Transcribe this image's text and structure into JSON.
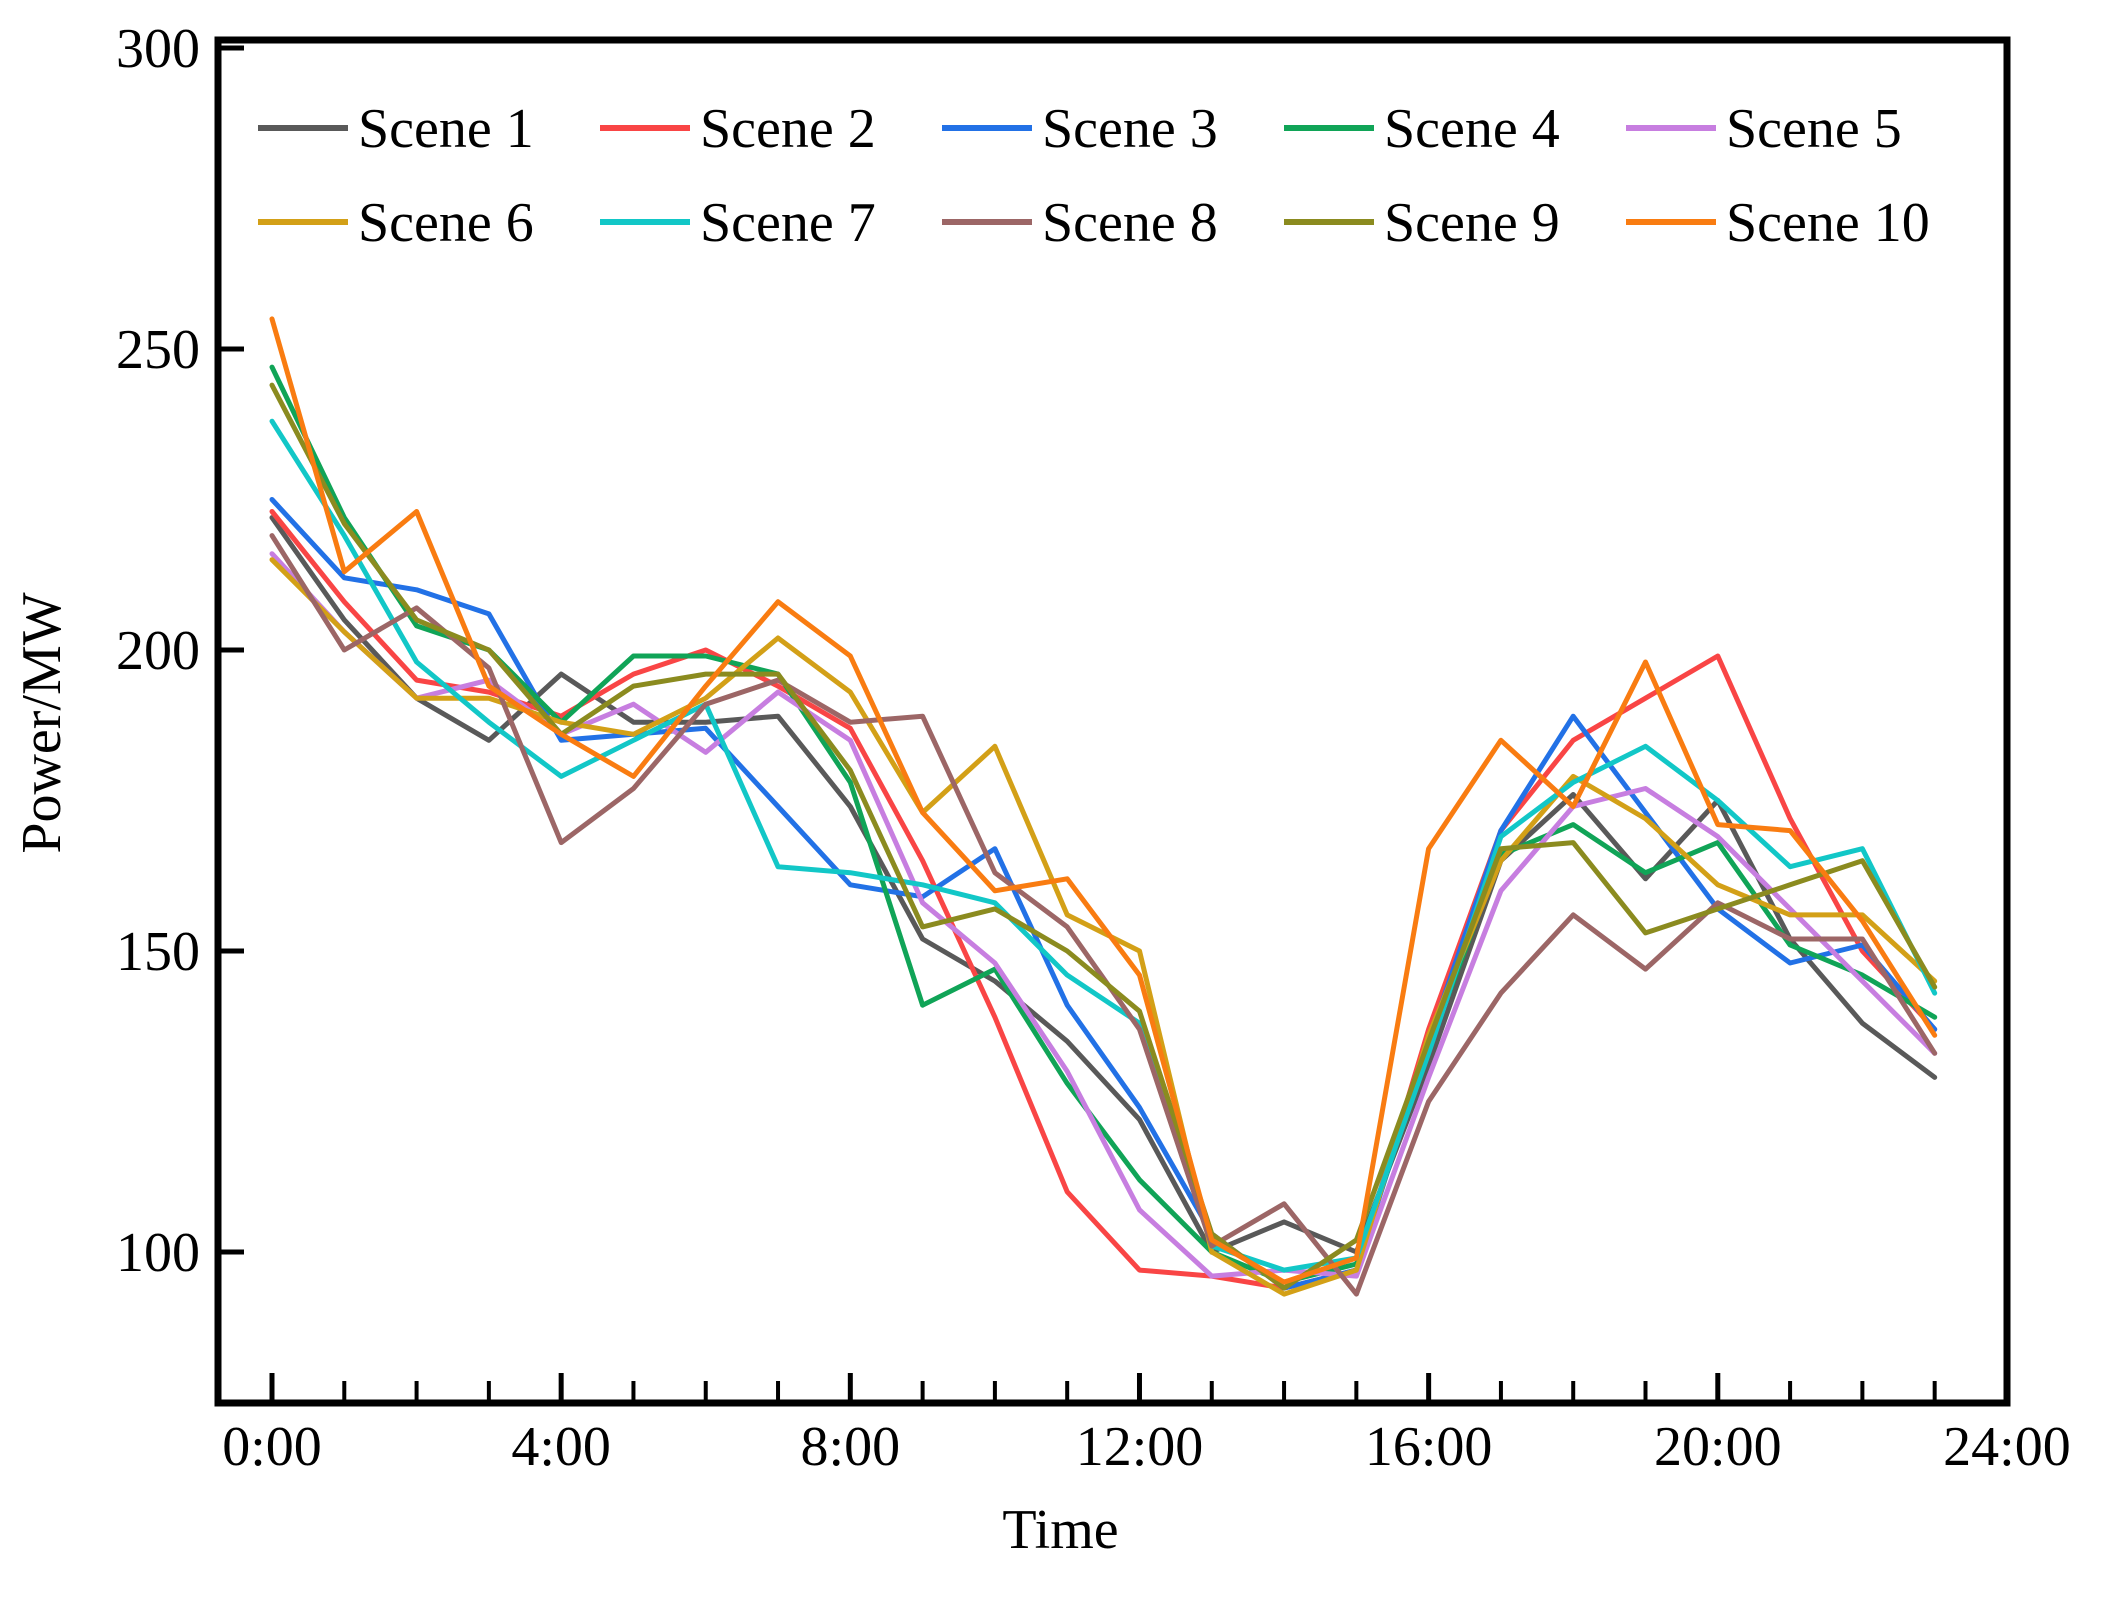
{
  "figure": {
    "xlabel": "Time",
    "ylabel": "Power/MW"
  },
  "chart_data": {
    "type": "line",
    "title": "",
    "xlabel": "Time",
    "ylabel": "Power/MW",
    "x_unit": "hour of day",
    "x": [
      0,
      1,
      2,
      3,
      4,
      5,
      6,
      7,
      8,
      9,
      10,
      11,
      12,
      13,
      14,
      15,
      16,
      17,
      18,
      19,
      20,
      21,
      22,
      23
    ],
    "x_tick_hours": [
      0,
      4,
      8,
      12,
      16,
      20,
      24
    ],
    "x_tick_labels": [
      "0:00",
      "4:00",
      "8:00",
      "12:00",
      "16:00",
      "20:00",
      "24:00"
    ],
    "x_minor_tick_every_hours": 1,
    "y_ticks": [
      100,
      150,
      200,
      250,
      300
    ],
    "ylim": [
      75,
      301
    ],
    "xlim": [
      0,
      24
    ],
    "grid": false,
    "legend_position": "top-inside-two-rows",
    "legend_rows": [
      [
        "Scene 1",
        "Scene 2",
        "Scene 3",
        "Scene 4",
        "Scene 5"
      ],
      [
        "Scene 6",
        "Scene 7",
        "Scene 8",
        "Scene 9",
        "Scene 10"
      ]
    ],
    "series": [
      {
        "name": "Scene 1",
        "color": "#595959",
        "values": [
          222,
          205,
          192,
          185,
          196,
          188,
          188,
          189,
          174,
          152,
          145,
          135,
          122,
          100,
          105,
          100,
          131,
          165,
          176,
          162,
          175,
          152,
          138,
          129
        ]
      },
      {
        "name": "Scene 2",
        "color": "#f94545",
        "values": [
          223,
          208,
          195,
          193,
          189,
          196,
          200,
          194,
          187,
          165,
          139,
          110,
          97,
          96,
          94,
          97,
          137,
          170,
          185,
          192,
          199,
          172,
          150,
          137
        ]
      },
      {
        "name": "Scene 3",
        "color": "#2271e6",
        "values": [
          225,
          212,
          210,
          206,
          185,
          186,
          187,
          174,
          161,
          159,
          167,
          141,
          124,
          103,
          94,
          97,
          135,
          170,
          189,
          173,
          157,
          148,
          151,
          137
        ]
      },
      {
        "name": "Scene 4",
        "color": "#10a457",
        "values": [
          247,
          222,
          204,
          200,
          188,
          199,
          199,
          196,
          178,
          141,
          147,
          128,
          112,
          100,
          95,
          98,
          134,
          166,
          171,
          163,
          168,
          151,
          146,
          139
        ]
      },
      {
        "name": "Scene 5",
        "color": "#c77ee0",
        "values": [
          216,
          203,
          192,
          195,
          186,
          191,
          183,
          193,
          185,
          158,
          148,
          130,
          107,
          96,
          97,
          96,
          129,
          160,
          174,
          177,
          169,
          157,
          145,
          133
        ]
      },
      {
        "name": "Scene 6",
        "color": "#d3a017",
        "values": [
          215,
          203,
          192,
          192,
          188,
          186,
          192,
          202,
          193,
          173,
          184,
          156,
          150,
          100,
          93,
          97,
          136,
          165,
          179,
          172,
          161,
          156,
          156,
          145
        ]
      },
      {
        "name": "Scene 7",
        "color": "#12c7c7",
        "values": [
          238,
          219,
          198,
          188,
          179,
          185,
          191,
          164,
          163,
          161,
          158,
          146,
          138,
          101,
          97,
          99,
          133,
          169,
          178,
          184,
          175,
          164,
          167,
          143
        ]
      },
      {
        "name": "Scene 8",
        "color": "#9c6666",
        "values": [
          219,
          200,
          207,
          197,
          168,
          177,
          191,
          195,
          188,
          189,
          163,
          154,
          137,
          101,
          108,
          93,
          125,
          143,
          156,
          147,
          158,
          152,
          152,
          133
        ]
      },
      {
        "name": "Scene 9",
        "color": "#8b8b1f",
        "values": [
          244,
          221,
          205,
          200,
          186,
          194,
          196,
          196,
          180,
          154,
          157,
          150,
          140,
          103,
          94,
          102,
          135,
          167,
          168,
          153,
          157,
          161,
          165,
          144
        ]
      },
      {
        "name": "Scene 10",
        "color": "#f97c11",
        "values": [
          255,
          213,
          223,
          194,
          186,
          179,
          194,
          208,
          199,
          173,
          160,
          162,
          146,
          102,
          95,
          99,
          167,
          185,
          174,
          198,
          171,
          170,
          155,
          136
        ]
      }
    ]
  }
}
